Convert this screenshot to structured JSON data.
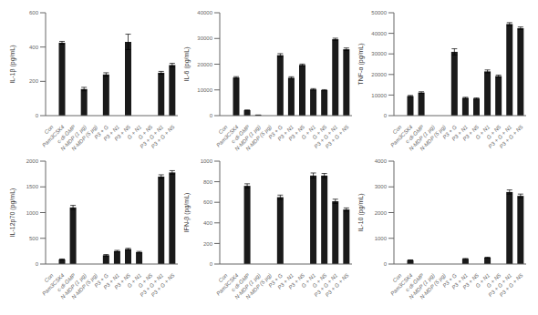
{
  "chart_data": [
    {
      "type": "bar",
      "ylabel": "IL-1β (pg/mL)",
      "color": "#1a1a1a",
      "categories": [
        "Con",
        "Pam3CSK4",
        "c-di-GMP",
        "N-MDP (1 µg)",
        "N-MDP (5 µg)",
        "P3 + G",
        "P3 + N1",
        "P3 + N5",
        "G + N1",
        "G + N5",
        "P3 + G + N1",
        "P3 + G + N5"
      ],
      "ylim": [
        0,
        600
      ],
      "yticks": [
        0,
        200,
        400,
        600
      ],
      "values": [
        0,
        425,
        0,
        155,
        0,
        240,
        0,
        430,
        0,
        0,
        250,
        295
      ],
      "errors": [
        0,
        8,
        0,
        10,
        0,
        10,
        0,
        45,
        0,
        0,
        8,
        10
      ]
    },
    {
      "type": "bar",
      "ylabel": "IL-6 (pg/mL)",
      "color": "#1a1a1a",
      "categories": [
        "Con",
        "Pam3CSK4",
        "c-di-GMP",
        "N-MDP (1 µg)",
        "N-MDP (5 µg)",
        "P3 + G",
        "P3 + N1",
        "P3 + N5",
        "G + N1",
        "G + N5",
        "P3 + G + N1",
        "P3 + G + N5"
      ],
      "ylim": [
        0,
        40000
      ],
      "yticks": [
        0,
        10000,
        20000,
        30000,
        40000
      ],
      "values": [
        0,
        14800,
        2100,
        200,
        0,
        23500,
        14700,
        19700,
        10200,
        9900,
        29700,
        25800
      ],
      "errors": [
        0,
        350,
        100,
        50,
        0,
        600,
        400,
        350,
        300,
        200,
        400,
        500
      ]
    },
    {
      "type": "bar",
      "ylabel": "TNF-α (pg/mL)",
      "color": "#1a1a1a",
      "categories": [
        "Con",
        "Pam3CSK4",
        "c-di-GMP",
        "N-MDP (1 µg)",
        "N-MDP (5 µg)",
        "P3 + G",
        "P3 + N1",
        "P3 + N5",
        "G + N1",
        "G + N5",
        "P3 + G + N1",
        "P3 + G + N5"
      ],
      "ylim": [
        0,
        50000
      ],
      "yticks": [
        0,
        10000,
        20000,
        30000,
        40000,
        50000
      ],
      "values": [
        0,
        9500,
        11200,
        0,
        0,
        31000,
        8600,
        8300,
        21500,
        19200,
        44500,
        42500
      ],
      "errors": [
        0,
        300,
        400,
        0,
        0,
        1500,
        300,
        300,
        700,
        500,
        700,
        600
      ]
    },
    {
      "type": "bar",
      "ylabel": "IL-12p70 (pg/mL)",
      "color": "#1a1a1a",
      "categories": [
        "Con",
        "Pam3CSK4",
        "c-di-GMP",
        "N-MDP (1 µg)",
        "N-MDP (5 µg)",
        "P3 + G",
        "P3 + N1",
        "P3 + N5",
        "G + N1",
        "G + N5",
        "P3 + G + N1",
        "P3 + G + N5"
      ],
      "ylim": [
        0,
        2000
      ],
      "yticks": [
        0,
        500,
        1000,
        1500,
        2000
      ],
      "values": [
        0,
        90,
        1100,
        0,
        0,
        170,
        250,
        290,
        230,
        0,
        1700,
        1780
      ],
      "errors": [
        0,
        8,
        40,
        0,
        0,
        15,
        15,
        15,
        15,
        0,
        35,
        35
      ]
    },
    {
      "type": "bar",
      "ylabel": "IFN-β (pg/mL)",
      "color": "#1a1a1a",
      "categories": [
        "Con",
        "Pam3CSK4",
        "c-di-GMP",
        "N-MDP (1 µg)",
        "N-MDP (5 µg)",
        "P3 + G",
        "P3 + N1",
        "P3 + N5",
        "G + N1",
        "G + N5",
        "P3 + G + N1",
        "P3 + G + N5"
      ],
      "ylim": [
        0,
        1000
      ],
      "yticks": [
        0,
        200,
        400,
        600,
        800,
        1000
      ],
      "values": [
        0,
        0,
        760,
        0,
        0,
        650,
        0,
        0,
        860,
        860,
        610,
        530
      ],
      "errors": [
        0,
        0,
        20,
        0,
        0,
        20,
        0,
        0,
        25,
        20,
        20,
        15
      ]
    },
    {
      "type": "bar",
      "ylabel": "IL-10 (pg/mL)",
      "color": "#1a1a1a",
      "categories": [
        "Con",
        "Pam3CSK4",
        "c-di-GMP",
        "N-MDP (1 µg)",
        "N-MDP (5 µg)",
        "P3 + G",
        "P3 + N1",
        "P3 + N5",
        "G + N1",
        "G + N5",
        "P3 + G + N1",
        "P3 + G + N5"
      ],
      "ylim": [
        0,
        4000
      ],
      "yticks": [
        0,
        1000,
        2000,
        3000,
        4000
      ],
      "values": [
        0,
        150,
        0,
        0,
        0,
        0,
        200,
        0,
        250,
        0,
        2800,
        2650
      ],
      "errors": [
        0,
        10,
        0,
        0,
        0,
        0,
        15,
        0,
        15,
        0,
        80,
        70
      ]
    }
  ]
}
